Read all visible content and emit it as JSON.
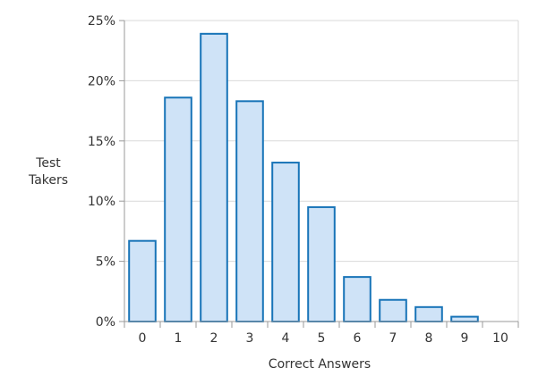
{
  "chart_data": {
    "type": "bar",
    "title": "",
    "xlabel": "Correct Answers",
    "ylabel": [
      "Test",
      "Takers"
    ],
    "categories": [
      "0",
      "1",
      "2",
      "3",
      "4",
      "5",
      "6",
      "7",
      "8",
      "9",
      "10"
    ],
    "values": [
      6.7,
      18.6,
      23.9,
      18.3,
      13.2,
      9.5,
      3.7,
      1.8,
      1.2,
      0.4,
      0.0
    ],
    "ylim": [
      0,
      25
    ],
    "yticks": [
      0,
      5,
      10,
      15,
      20,
      25
    ],
    "ytick_labels": [
      "0%",
      "5%",
      "10%",
      "15%",
      "20%",
      "25%"
    ],
    "grid": true,
    "legend": "none",
    "colors": {
      "bar_fill": "#cfe3f7",
      "bar_stroke": "#1874b8",
      "grid": "#d9d9d9",
      "axis": "#9a9a9a",
      "text": "#333333"
    }
  }
}
